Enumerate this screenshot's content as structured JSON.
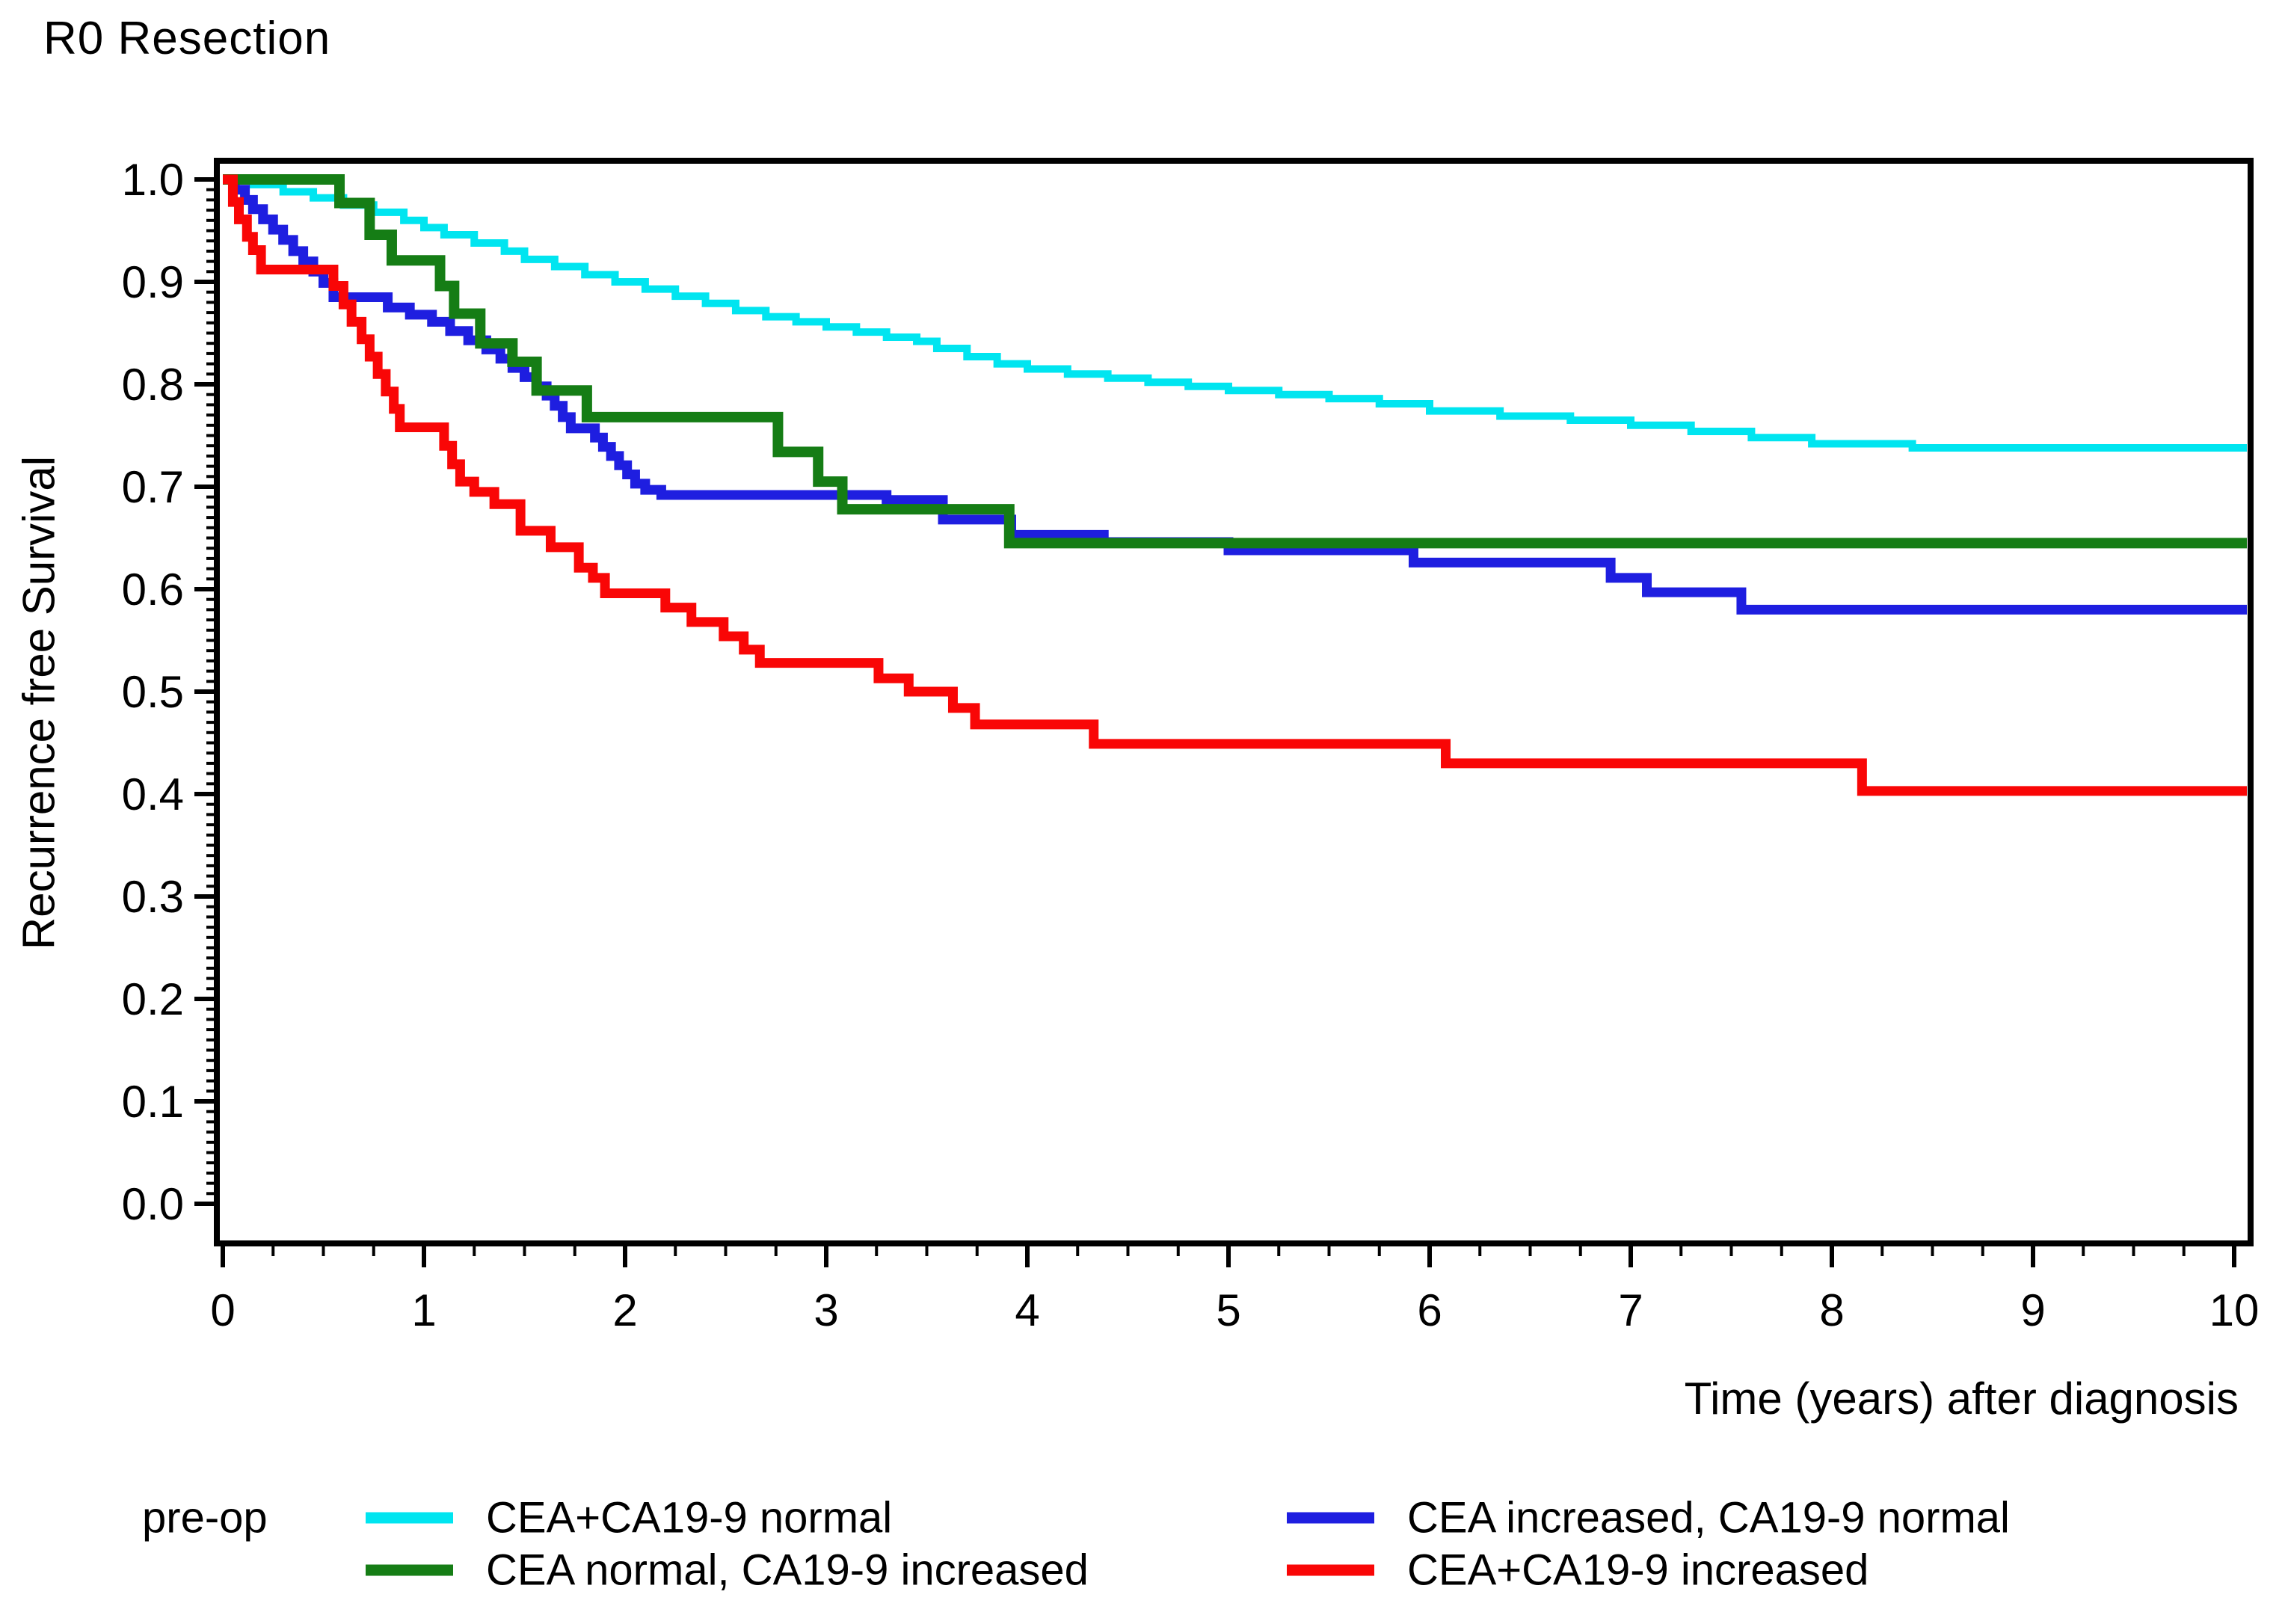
{
  "title": "R0 Resection",
  "axes": {
    "x": {
      "label": "Time (years) after diagnosis",
      "min": 0,
      "max": 10,
      "major_tick_step": 1,
      "minor_tick_step": 0.25,
      "tick_labels": [
        "0",
        "1",
        "2",
        "3",
        "4",
        "5",
        "6",
        "7",
        "8",
        "9",
        "10"
      ]
    },
    "y": {
      "label": "Recurrence free Survival",
      "min": 0.0,
      "max": 1.0,
      "major_tick_step": 0.1,
      "minor_tick_step": 0.01,
      "tick_labels": [
        "0.0",
        "0.1",
        "0.2",
        "0.3",
        "0.4",
        "0.5",
        "0.6",
        "0.7",
        "0.8",
        "0.9",
        "1.0"
      ]
    }
  },
  "legend": {
    "group_label": "pre-op",
    "column1_series_indexes": [
      0,
      2
    ],
    "column2_series_indexes": [
      1,
      3
    ]
  },
  "chart_data": {
    "type": "line",
    "step_mode": "after",
    "title": "R0 Resection",
    "xlabel": "Time (years) after diagnosis",
    "ylabel": "Recurrence free Survival",
    "xlim": [
      0,
      10
    ],
    "ylim": [
      0.0,
      1.0
    ],
    "grid": false,
    "legend_position": "bottom",
    "series": [
      {
        "name": "CEA+CA19-9 normal",
        "color": "#00e5f0",
        "line_width": 10,
        "points": [
          [
            0,
            1.0
          ],
          [
            0.15,
            0.995
          ],
          [
            0.3,
            0.988
          ],
          [
            0.45,
            0.982
          ],
          [
            0.6,
            0.975
          ],
          [
            0.75,
            0.968
          ],
          [
            0.9,
            0.96
          ],
          [
            1.0,
            0.953
          ],
          [
            1.1,
            0.946
          ],
          [
            1.25,
            0.938
          ],
          [
            1.4,
            0.93
          ],
          [
            1.5,
            0.922
          ],
          [
            1.65,
            0.915
          ],
          [
            1.8,
            0.907
          ],
          [
            1.95,
            0.9
          ],
          [
            2.1,
            0.893
          ],
          [
            2.25,
            0.886
          ],
          [
            2.4,
            0.879
          ],
          [
            2.55,
            0.872
          ],
          [
            2.7,
            0.866
          ],
          [
            2.85,
            0.861
          ],
          [
            3.0,
            0.856
          ],
          [
            3.15,
            0.851
          ],
          [
            3.3,
            0.846
          ],
          [
            3.45,
            0.842
          ],
          [
            3.55,
            0.835
          ],
          [
            3.7,
            0.827
          ],
          [
            3.85,
            0.82
          ],
          [
            4.0,
            0.815
          ],
          [
            4.2,
            0.81
          ],
          [
            4.4,
            0.806
          ],
          [
            4.6,
            0.802
          ],
          [
            4.8,
            0.798
          ],
          [
            5.0,
            0.794
          ],
          [
            5.25,
            0.79
          ],
          [
            5.5,
            0.786
          ],
          [
            5.75,
            0.781
          ],
          [
            6.0,
            0.774
          ],
          [
            6.35,
            0.769
          ],
          [
            6.7,
            0.765
          ],
          [
            7.0,
            0.76
          ],
          [
            7.3,
            0.754
          ],
          [
            7.6,
            0.748
          ],
          [
            7.9,
            0.742
          ],
          [
            8.4,
            0.738
          ],
          [
            10,
            0.738
          ]
        ]
      },
      {
        "name": "CEA increased, CA19-9 normal",
        "color": "#1e1ee0",
        "line_width": 13,
        "points": [
          [
            0,
            1.0
          ],
          [
            0.06,
            0.99
          ],
          [
            0.11,
            0.98
          ],
          [
            0.15,
            0.971
          ],
          [
            0.2,
            0.961
          ],
          [
            0.25,
            0.951
          ],
          [
            0.3,
            0.941
          ],
          [
            0.35,
            0.93
          ],
          [
            0.4,
            0.92
          ],
          [
            0.45,
            0.91
          ],
          [
            0.5,
            0.899
          ],
          [
            0.55,
            0.885
          ],
          [
            0.82,
            0.875
          ],
          [
            0.93,
            0.868
          ],
          [
            1.04,
            0.861
          ],
          [
            1.13,
            0.852
          ],
          [
            1.22,
            0.843
          ],
          [
            1.31,
            0.834
          ],
          [
            1.38,
            0.825
          ],
          [
            1.44,
            0.816
          ],
          [
            1.5,
            0.807
          ],
          [
            1.56,
            0.798
          ],
          [
            1.61,
            0.789
          ],
          [
            1.65,
            0.779
          ],
          [
            1.69,
            0.768
          ],
          [
            1.73,
            0.757
          ],
          [
            1.85,
            0.748
          ],
          [
            1.89,
            0.739
          ],
          [
            1.93,
            0.73
          ],
          [
            1.97,
            0.721
          ],
          [
            2.01,
            0.712
          ],
          [
            2.05,
            0.703
          ],
          [
            2.1,
            0.697
          ],
          [
            2.18,
            0.692
          ],
          [
            3.3,
            0.687
          ],
          [
            3.58,
            0.668
          ],
          [
            3.92,
            0.653
          ],
          [
            4.38,
            0.646
          ],
          [
            5.0,
            0.638
          ],
          [
            5.92,
            0.626
          ],
          [
            6.9,
            0.611
          ],
          [
            7.08,
            0.597
          ],
          [
            7.55,
            0.58
          ],
          [
            10,
            0.58
          ]
        ]
      },
      {
        "name": "CEA normal, CA19-9 increased",
        "color": "#157d15",
        "line_width": 14,
        "points": [
          [
            0,
            1.0
          ],
          [
            0.58,
            0.977
          ],
          [
            0.73,
            0.946
          ],
          [
            0.84,
            0.921
          ],
          [
            1.08,
            0.896
          ],
          [
            1.15,
            0.869
          ],
          [
            1.28,
            0.84
          ],
          [
            1.44,
            0.822
          ],
          [
            1.56,
            0.794
          ],
          [
            1.81,
            0.768
          ],
          [
            2.76,
            0.734
          ],
          [
            2.96,
            0.705
          ],
          [
            3.08,
            0.678
          ],
          [
            3.91,
            0.645
          ],
          [
            10,
            0.645
          ]
        ]
      },
      {
        "name": "CEA+CA19-9 increased",
        "color": "#f90606",
        "line_width": 13,
        "points": [
          [
            0,
            1.0
          ],
          [
            0.05,
            0.978
          ],
          [
            0.08,
            0.961
          ],
          [
            0.12,
            0.944
          ],
          [
            0.15,
            0.931
          ],
          [
            0.19,
            0.912
          ],
          [
            0.55,
            0.896
          ],
          [
            0.6,
            0.878
          ],
          [
            0.64,
            0.861
          ],
          [
            0.69,
            0.844
          ],
          [
            0.73,
            0.827
          ],
          [
            0.77,
            0.81
          ],
          [
            0.81,
            0.793
          ],
          [
            0.85,
            0.776
          ],
          [
            0.88,
            0.758
          ],
          [
            1.1,
            0.74
          ],
          [
            1.14,
            0.722
          ],
          [
            1.18,
            0.705
          ],
          [
            1.25,
            0.695
          ],
          [
            1.35,
            0.683
          ],
          [
            1.48,
            0.657
          ],
          [
            1.63,
            0.641
          ],
          [
            1.77,
            0.621
          ],
          [
            1.84,
            0.611
          ],
          [
            1.9,
            0.596
          ],
          [
            2.2,
            0.582
          ],
          [
            2.33,
            0.568
          ],
          [
            2.49,
            0.554
          ],
          [
            2.59,
            0.541
          ],
          [
            2.67,
            0.528
          ],
          [
            3.26,
            0.513
          ],
          [
            3.41,
            0.5
          ],
          [
            3.63,
            0.484
          ],
          [
            3.74,
            0.468
          ],
          [
            4.33,
            0.449
          ],
          [
            6.08,
            0.43
          ],
          [
            8.15,
            0.403
          ],
          [
            10,
            0.403
          ]
        ]
      }
    ]
  },
  "style": {
    "background": "#ffffff",
    "axis_color": "#000000",
    "text_color": "#000000"
  }
}
